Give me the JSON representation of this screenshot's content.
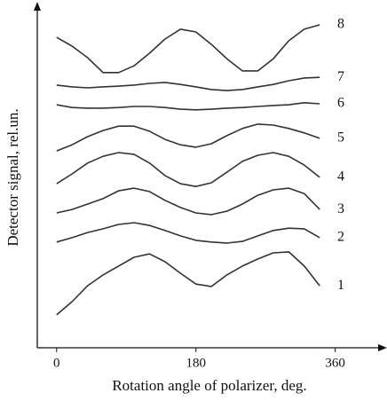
{
  "chart_data": {
    "type": "line",
    "xlabel": "Rotation angle of polarizer, deg.",
    "ylabel": "Detector signal, rel.un.",
    "x": [
      0,
      20,
      40,
      60,
      80,
      100,
      120,
      140,
      160,
      180,
      200,
      220,
      240,
      260,
      280,
      300,
      320,
      340
    ],
    "xlim": [
      -25,
      420
    ],
    "xticks": [
      0,
      180,
      360
    ],
    "ylim": [
      0,
      100
    ],
    "series": [
      {
        "name": "1",
        "color": "#333333",
        "values": [
          9.7,
          13.6,
          18.3,
          21.5,
          24.1,
          26.7,
          27.7,
          25.4,
          22.0,
          18.8,
          18.1,
          21.5,
          24.1,
          26.2,
          28.0,
          28.3,
          24.1,
          18.3
        ]
      },
      {
        "name": "2",
        "color": "#333333",
        "values": [
          31.2,
          32.5,
          34.0,
          35.1,
          36.4,
          36.9,
          36.1,
          34.6,
          33.0,
          31.7,
          31.2,
          30.9,
          31.4,
          33.0,
          34.6,
          35.3,
          35.1,
          32.5
        ]
      },
      {
        "name": "3",
        "color": "#333333",
        "values": [
          39.8,
          40.8,
          42.4,
          44.0,
          46.3,
          47.1,
          46.1,
          43.5,
          41.4,
          39.8,
          39.3,
          40.3,
          42.4,
          45.0,
          46.6,
          47.1,
          45.5,
          40.8
        ]
      },
      {
        "name": "4",
        "color": "#333333",
        "values": [
          48.4,
          51.3,
          54.5,
          56.5,
          57.6,
          57.1,
          54.5,
          50.8,
          48.4,
          47.6,
          48.7,
          51.8,
          55.0,
          56.8,
          57.6,
          56.5,
          53.9,
          50.3
        ]
      },
      {
        "name": "5",
        "color": "#333333",
        "values": [
          58.1,
          59.9,
          62.3,
          64.1,
          65.4,
          65.4,
          63.9,
          61.5,
          59.9,
          59.2,
          60.2,
          62.6,
          64.7,
          66.0,
          65.7,
          64.7,
          63.4,
          61.8
        ]
      },
      {
        "name": "6",
        "color": "#333333",
        "values": [
          71.7,
          70.9,
          70.7,
          70.7,
          70.9,
          71.2,
          71.2,
          70.9,
          70.4,
          70.2,
          70.4,
          70.7,
          70.9,
          71.2,
          71.5,
          71.7,
          72.3,
          72.0
        ]
      },
      {
        "name": "7",
        "color": "#333333",
        "values": [
          77.5,
          77.0,
          76.7,
          77.0,
          77.2,
          77.5,
          78.0,
          78.3,
          77.7,
          77.0,
          76.2,
          75.9,
          76.2,
          77.0,
          77.7,
          78.8,
          79.6,
          79.8
        ]
      },
      {
        "name": "8",
        "color": "#333333",
        "values": [
          91.6,
          89.0,
          85.6,
          81.2,
          81.2,
          83.2,
          86.9,
          91.1,
          94.0,
          93.2,
          89.5,
          85.3,
          81.7,
          81.7,
          85.3,
          90.6,
          94.0,
          95.3
        ]
      }
    ]
  }
}
